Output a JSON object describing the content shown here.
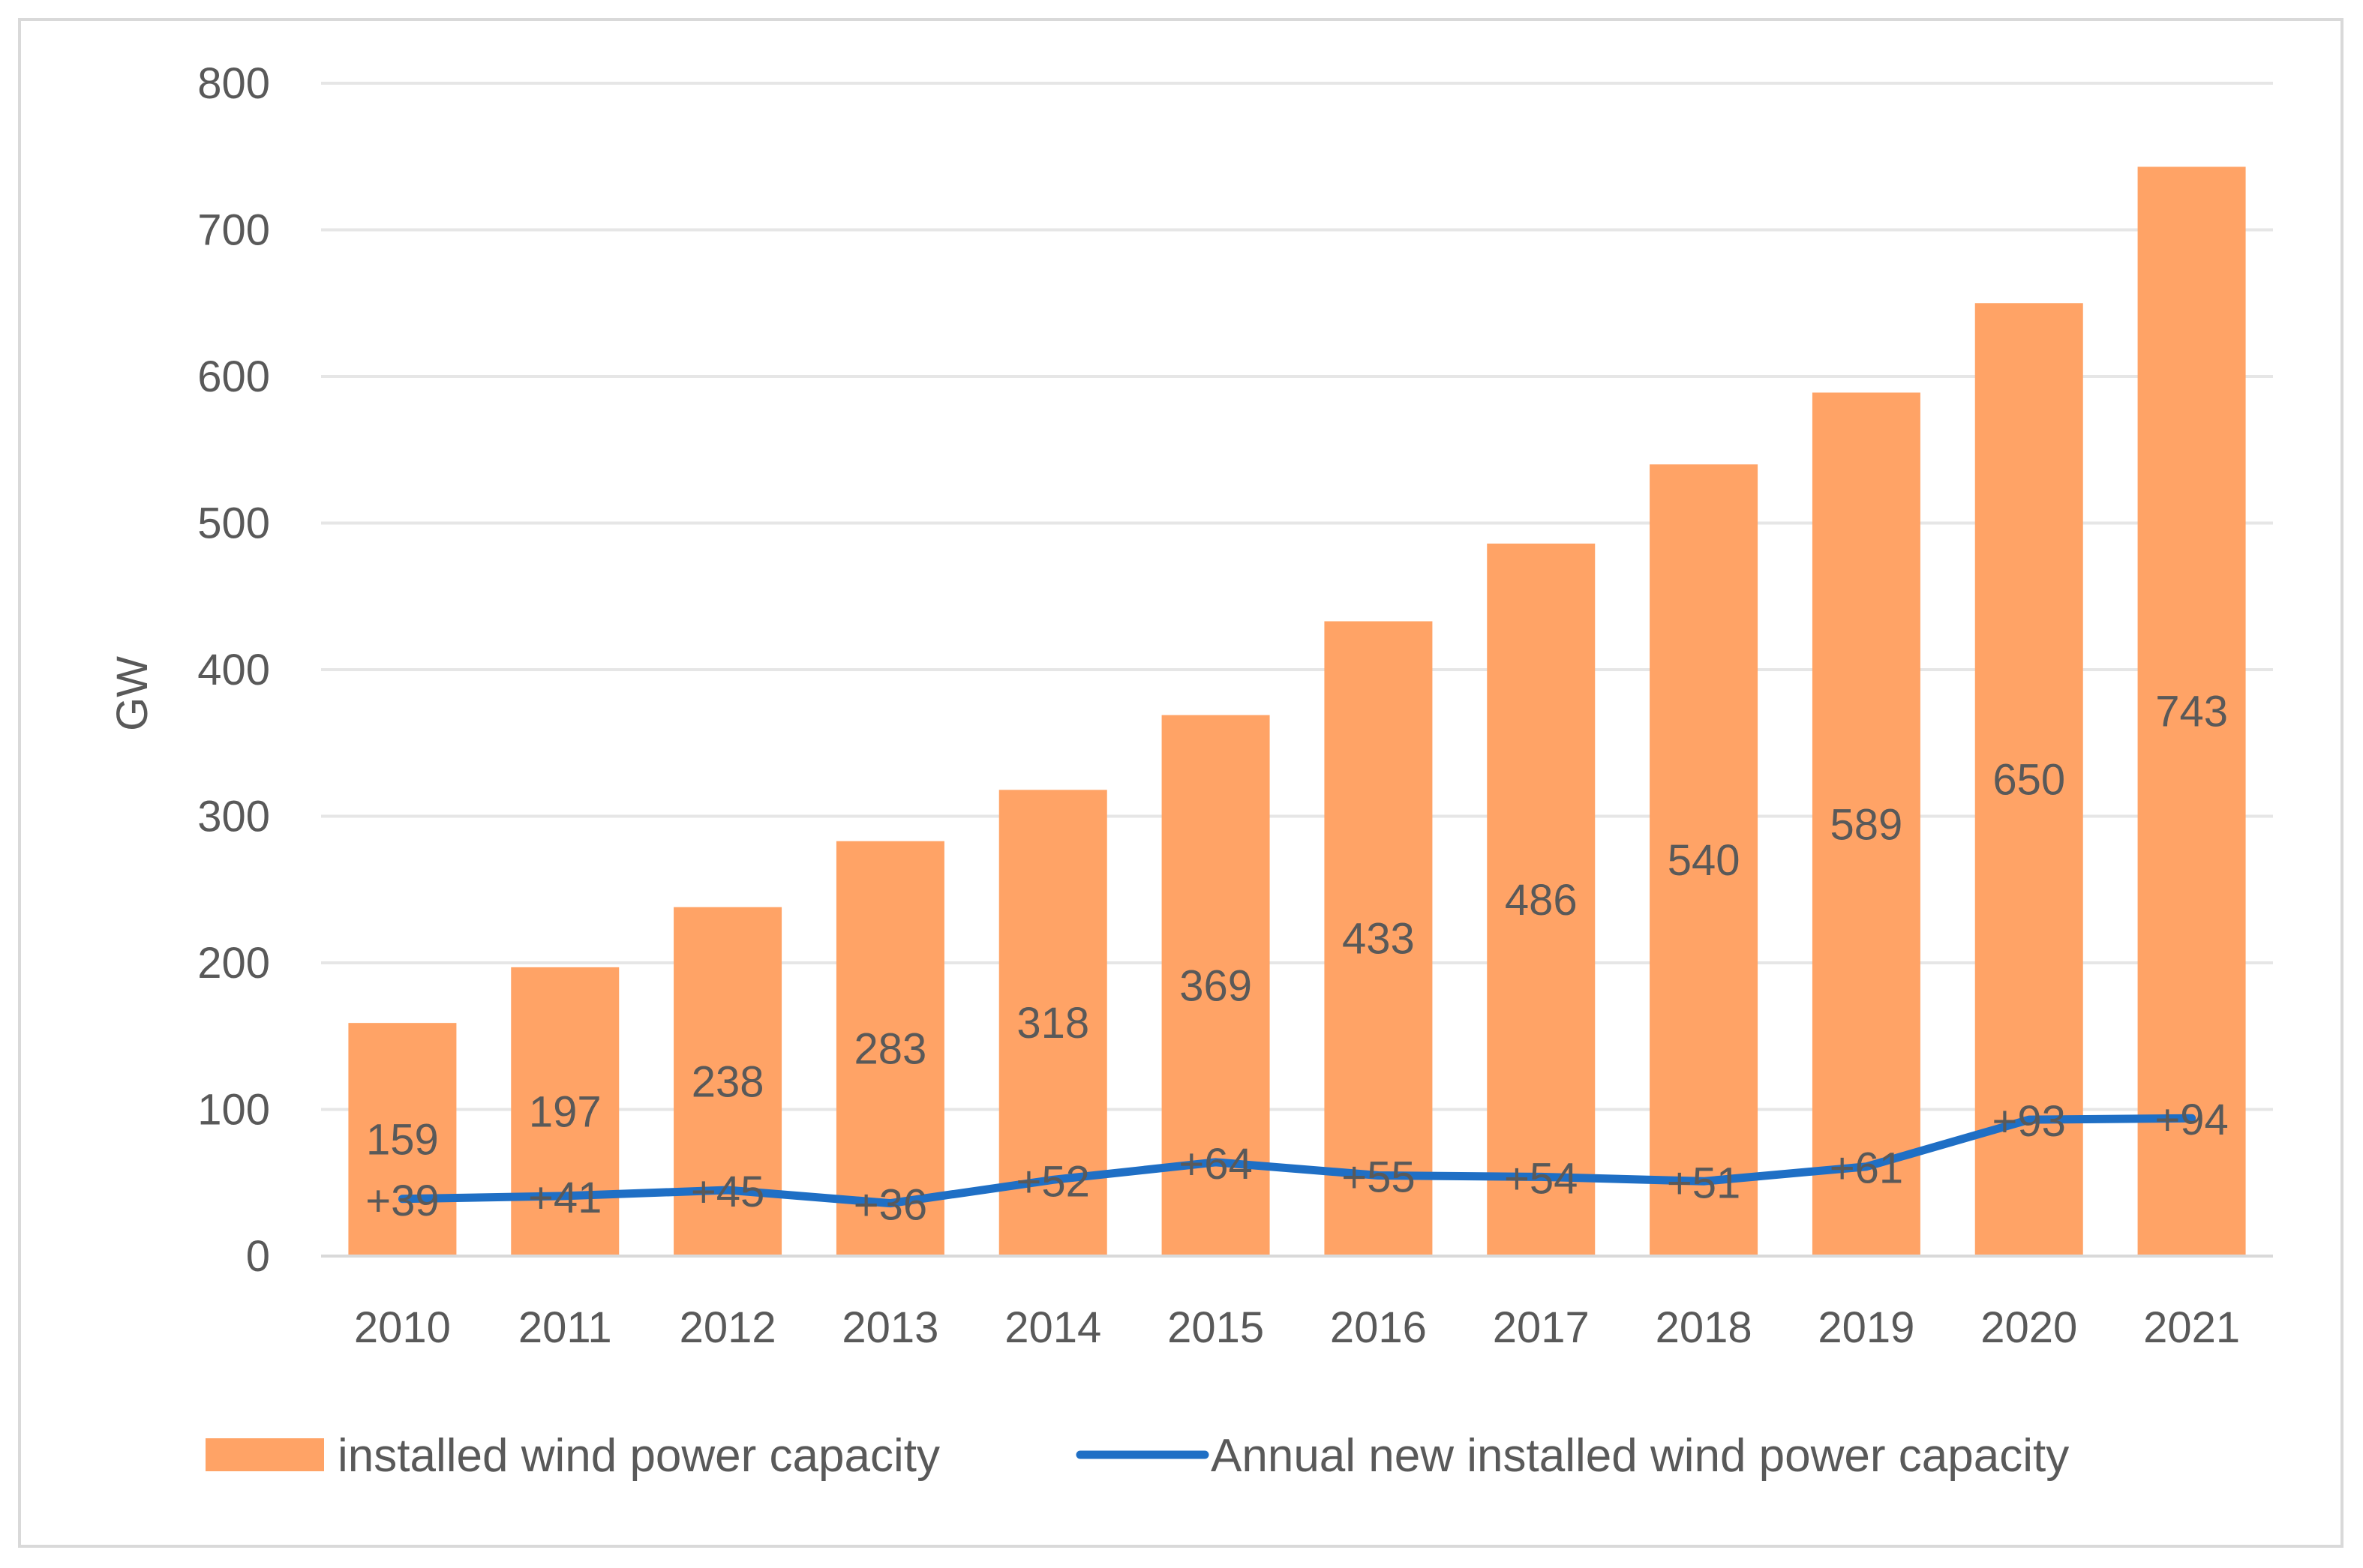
{
  "chart_data": {
    "type": "bar",
    "categories": [
      "2010",
      "2011",
      "2012",
      "2013",
      "2014",
      "2015",
      "2016",
      "2017",
      "2018",
      "2019",
      "2020",
      "2021"
    ],
    "series": [
      {
        "name": "installed wind power capacity",
        "kind": "bar",
        "color": "#FFA366",
        "values": [
          159,
          197,
          238,
          283,
          318,
          369,
          433,
          486,
          540,
          589,
          650,
          743
        ],
        "labels": [
          "159",
          "197",
          "238",
          "283",
          "318",
          "369",
          "433",
          "486",
          "540",
          "589",
          "650",
          "743"
        ]
      },
      {
        "name": "Annual new installed wind power capacity",
        "kind": "line",
        "color": "#1F6FC5",
        "values": [
          39,
          41,
          45,
          36,
          52,
          64,
          55,
          54,
          51,
          61,
          93,
          94
        ],
        "labels": [
          "+39",
          "+41",
          "+45",
          "+36",
          "+52",
          "+64",
          "+55",
          "+54",
          "+51",
          "+61",
          "+93",
          "+94"
        ]
      }
    ],
    "ylabel": "GW",
    "ylim": [
      0,
      800
    ],
    "yticks": [
      0,
      100,
      200,
      300,
      400,
      500,
      600,
      700,
      800
    ],
    "ytick_labels": [
      "0",
      "100",
      "200",
      "300",
      "400",
      "500",
      "600",
      "700",
      "800"
    ],
    "grid": true,
    "gridline_color": "#e6e6e6",
    "legend": "bottom"
  }
}
